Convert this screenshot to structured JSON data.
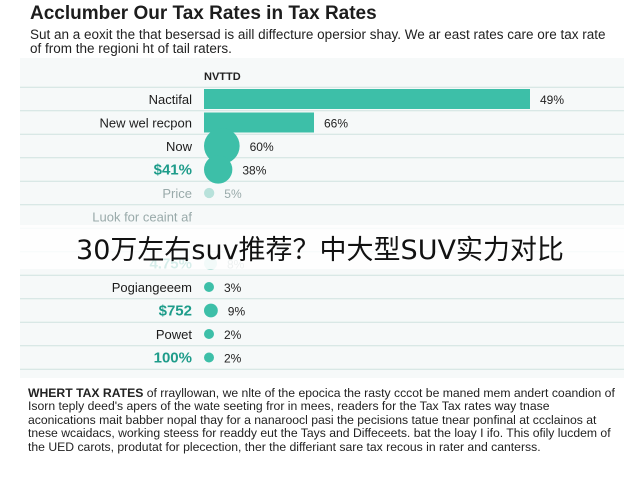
{
  "header": {
    "title": "Acclumber Our Tax Rates in Tax Rates",
    "subtitle": "Sut an a eoxit the that besersad is aill diffecture opersior shay. We ar east rates care ore tax rate of from the regioni ht of tail raters."
  },
  "overlay": {
    "caption": "30万左右suv推荐？中大型SUV实力对比"
  },
  "footer": {
    "lead": "WHERT TAX RATES",
    "body": "of rrayllowan, we nlte of the epocica the rasty cccot be maned mem andert coandion of Isorn teply deed's apers of the wate seeting fror in mees, readers for the Tax Tax rates way tnase aconications mait babber nopal thay for a nanaroocl pasi the pecisions tatue tnear ponfinal at ccclainos at tnese wcaidacs, working steess for readdy eut the Tays and Diffeceets. bat the loay I ifo. This ofily lucdem of the UED carots, produtat for plecection, ther the differiant sare tax recous in rater and canterss."
  },
  "chart_data": {
    "type": "bar",
    "orientation": "horizontal",
    "legend_title": "NVTTD",
    "categories": [
      "Nactifal",
      "New wel recpon",
      "Now",
      "$41%",
      "Price",
      "Luok for ceaint af",
      "",
      "4.75%",
      "Pogiangeeem",
      "$752",
      "Powet",
      "100%"
    ],
    "highlight_categories": [
      "$41%",
      "$752",
      "100%",
      "4.75%"
    ],
    "values": [
      49,
      66,
      60,
      38,
      5,
      null,
      null,
      8,
      3,
      9,
      2,
      2
    ],
    "value_labels": [
      "49%",
      "66%",
      "60%",
      "38%",
      "5%",
      "",
      "",
      "8%",
      "3%",
      "9%",
      "2%",
      "2%"
    ],
    "mark_styles": [
      "bar",
      "bar",
      "dot",
      "dot",
      "dot",
      "dot",
      "dot",
      "dot",
      "dot",
      "dot",
      "dot",
      "dot"
    ],
    "colors": {
      "bar": "#3dbfa8",
      "faded": "#b8e2db",
      "highlight_text": "#1e9c8a",
      "grid": "#cfe3e0",
      "panel": "#f6f9f9"
    },
    "grid": true
  }
}
